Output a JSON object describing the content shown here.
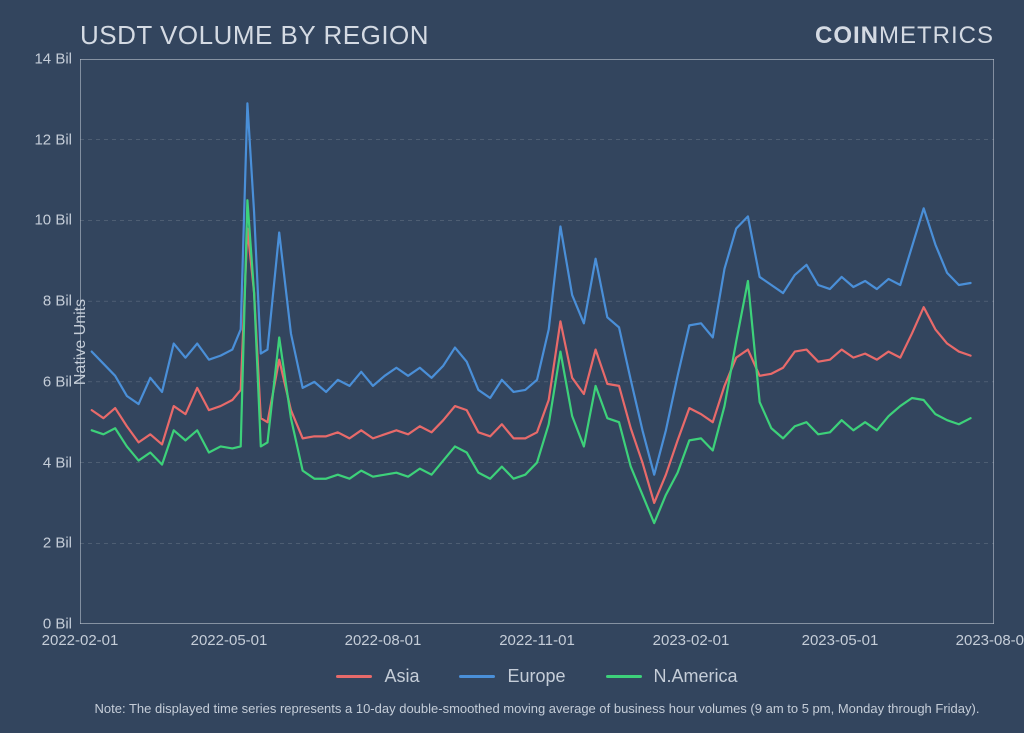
{
  "chart": {
    "type": "line",
    "title": "USDT VOLUME BY REGION",
    "background_color": "#33455e",
    "title_color": "#d4dae3",
    "title_fontsize": 26,
    "logo_text_bold": "COIN",
    "logo_text_light": "METRICS",
    "ylabel": "Native Units",
    "label_fontsize": 16,
    "axis_text_color": "#c5cdd8",
    "grid_color": "#8a94a3",
    "axis_line_color": "#b8c0cc",
    "ylim": [
      0,
      14
    ],
    "yticks": [
      0,
      2,
      4,
      6,
      8,
      10,
      12,
      14
    ],
    "ytick_labels": [
      "0 Bil",
      "2 Bil",
      "4 Bil",
      "6 Bil",
      "8 Bil",
      "10 Bil",
      "12 Bil",
      "14 Bil"
    ],
    "x_range_days": 546,
    "xtick_positions": [
      0,
      89,
      181,
      273,
      365,
      454,
      546
    ],
    "xtick_labels": [
      "2022-02-01",
      "2022-05-01",
      "2022-08-01",
      "2022-11-01",
      "2023-02-01",
      "2023-05-01",
      "2023-08-01"
    ],
    "line_width": 2.2,
    "series": [
      {
        "name": "Asia",
        "color": "#e86a6a",
        "data": [
          [
            7,
            5.3
          ],
          [
            14,
            5.1
          ],
          [
            21,
            5.35
          ],
          [
            28,
            4.9
          ],
          [
            35,
            4.5
          ],
          [
            42,
            4.7
          ],
          [
            49,
            4.45
          ],
          [
            56,
            5.4
          ],
          [
            63,
            5.2
          ],
          [
            70,
            5.85
          ],
          [
            77,
            5.3
          ],
          [
            84,
            5.4
          ],
          [
            91,
            5.55
          ],
          [
            96,
            5.8
          ],
          [
            100,
            9.8
          ],
          [
            104,
            8.2
          ],
          [
            108,
            5.1
          ],
          [
            112,
            5.0
          ],
          [
            119,
            6.55
          ],
          [
            126,
            5.3
          ],
          [
            133,
            4.6
          ],
          [
            140,
            4.65
          ],
          [
            147,
            4.65
          ],
          [
            154,
            4.75
          ],
          [
            161,
            4.6
          ],
          [
            168,
            4.8
          ],
          [
            175,
            4.6
          ],
          [
            182,
            4.7
          ],
          [
            189,
            4.8
          ],
          [
            196,
            4.7
          ],
          [
            203,
            4.9
          ],
          [
            210,
            4.75
          ],
          [
            217,
            5.05
          ],
          [
            224,
            5.4
          ],
          [
            231,
            5.3
          ],
          [
            238,
            4.75
          ],
          [
            245,
            4.65
          ],
          [
            252,
            4.95
          ],
          [
            259,
            4.6
          ],
          [
            266,
            4.6
          ],
          [
            273,
            4.75
          ],
          [
            280,
            5.55
          ],
          [
            287,
            7.5
          ],
          [
            294,
            6.1
          ],
          [
            301,
            5.7
          ],
          [
            308,
            6.8
          ],
          [
            315,
            5.95
          ],
          [
            322,
            5.9
          ],
          [
            329,
            4.85
          ],
          [
            336,
            4.0
          ],
          [
            343,
            3.0
          ],
          [
            350,
            3.7
          ],
          [
            357,
            4.55
          ],
          [
            364,
            5.35
          ],
          [
            371,
            5.2
          ],
          [
            378,
            5.0
          ],
          [
            385,
            5.9
          ],
          [
            392,
            6.6
          ],
          [
            399,
            6.8
          ],
          [
            406,
            6.15
          ],
          [
            413,
            6.2
          ],
          [
            420,
            6.35
          ],
          [
            427,
            6.75
          ],
          [
            434,
            6.8
          ],
          [
            441,
            6.5
          ],
          [
            448,
            6.55
          ],
          [
            455,
            6.8
          ],
          [
            462,
            6.6
          ],
          [
            469,
            6.7
          ],
          [
            476,
            6.55
          ],
          [
            483,
            6.75
          ],
          [
            490,
            6.6
          ],
          [
            497,
            7.2
          ],
          [
            504,
            7.85
          ],
          [
            511,
            7.3
          ],
          [
            518,
            6.95
          ],
          [
            525,
            6.75
          ],
          [
            532,
            6.65
          ]
        ]
      },
      {
        "name": "Europe",
        "color": "#4a8fd8",
        "data": [
          [
            7,
            6.75
          ],
          [
            14,
            6.45
          ],
          [
            21,
            6.15
          ],
          [
            28,
            5.65
          ],
          [
            35,
            5.45
          ],
          [
            42,
            6.1
          ],
          [
            49,
            5.75
          ],
          [
            56,
            6.95
          ],
          [
            63,
            6.6
          ],
          [
            70,
            6.95
          ],
          [
            77,
            6.55
          ],
          [
            84,
            6.65
          ],
          [
            91,
            6.8
          ],
          [
            96,
            7.3
          ],
          [
            100,
            12.9
          ],
          [
            104,
            10.2
          ],
          [
            108,
            6.7
          ],
          [
            112,
            6.8
          ],
          [
            119,
            9.7
          ],
          [
            126,
            7.2
          ],
          [
            133,
            5.85
          ],
          [
            140,
            6.0
          ],
          [
            147,
            5.75
          ],
          [
            154,
            6.05
          ],
          [
            161,
            5.9
          ],
          [
            168,
            6.25
          ],
          [
            175,
            5.9
          ],
          [
            182,
            6.15
          ],
          [
            189,
            6.35
          ],
          [
            196,
            6.15
          ],
          [
            203,
            6.35
          ],
          [
            210,
            6.1
          ],
          [
            217,
            6.4
          ],
          [
            224,
            6.85
          ],
          [
            231,
            6.5
          ],
          [
            238,
            5.8
          ],
          [
            245,
            5.6
          ],
          [
            252,
            6.05
          ],
          [
            259,
            5.75
          ],
          [
            266,
            5.8
          ],
          [
            273,
            6.05
          ],
          [
            280,
            7.3
          ],
          [
            287,
            9.85
          ],
          [
            294,
            8.15
          ],
          [
            301,
            7.45
          ],
          [
            308,
            9.05
          ],
          [
            315,
            7.6
          ],
          [
            322,
            7.35
          ],
          [
            329,
            6.05
          ],
          [
            336,
            4.8
          ],
          [
            343,
            3.7
          ],
          [
            350,
            4.8
          ],
          [
            357,
            6.15
          ],
          [
            364,
            7.4
          ],
          [
            371,
            7.45
          ],
          [
            378,
            7.1
          ],
          [
            385,
            8.8
          ],
          [
            392,
            9.8
          ],
          [
            399,
            10.1
          ],
          [
            406,
            8.6
          ],
          [
            413,
            8.4
          ],
          [
            420,
            8.2
          ],
          [
            427,
            8.65
          ],
          [
            434,
            8.9
          ],
          [
            441,
            8.4
          ],
          [
            448,
            8.3
          ],
          [
            455,
            8.6
          ],
          [
            462,
            8.35
          ],
          [
            469,
            8.5
          ],
          [
            476,
            8.3
          ],
          [
            483,
            8.55
          ],
          [
            490,
            8.4
          ],
          [
            497,
            9.35
          ],
          [
            504,
            10.3
          ],
          [
            511,
            9.4
          ],
          [
            518,
            8.7
          ],
          [
            525,
            8.4
          ],
          [
            532,
            8.45
          ]
        ]
      },
      {
        "name": "N.America",
        "color": "#3dd17a",
        "data": [
          [
            7,
            4.8
          ],
          [
            14,
            4.7
          ],
          [
            21,
            4.85
          ],
          [
            28,
            4.4
          ],
          [
            35,
            4.05
          ],
          [
            42,
            4.25
          ],
          [
            49,
            3.95
          ],
          [
            56,
            4.8
          ],
          [
            63,
            4.55
          ],
          [
            70,
            4.8
          ],
          [
            77,
            4.25
          ],
          [
            84,
            4.4
          ],
          [
            91,
            4.35
          ],
          [
            96,
            4.4
          ],
          [
            100,
            10.5
          ],
          [
            104,
            8.2
          ],
          [
            108,
            4.4
          ],
          [
            112,
            4.5
          ],
          [
            119,
            7.1
          ],
          [
            126,
            5.1
          ],
          [
            133,
            3.8
          ],
          [
            140,
            3.6
          ],
          [
            147,
            3.6
          ],
          [
            154,
            3.7
          ],
          [
            161,
            3.6
          ],
          [
            168,
            3.8
          ],
          [
            175,
            3.65
          ],
          [
            182,
            3.7
          ],
          [
            189,
            3.75
          ],
          [
            196,
            3.65
          ],
          [
            203,
            3.85
          ],
          [
            210,
            3.7
          ],
          [
            217,
            4.05
          ],
          [
            224,
            4.4
          ],
          [
            231,
            4.25
          ],
          [
            238,
            3.75
          ],
          [
            245,
            3.6
          ],
          [
            252,
            3.9
          ],
          [
            259,
            3.6
          ],
          [
            266,
            3.7
          ],
          [
            273,
            4.0
          ],
          [
            280,
            4.95
          ],
          [
            287,
            6.75
          ],
          [
            294,
            5.15
          ],
          [
            301,
            4.4
          ],
          [
            308,
            5.9
          ],
          [
            315,
            5.1
          ],
          [
            322,
            5.0
          ],
          [
            329,
            3.9
          ],
          [
            336,
            3.2
          ],
          [
            343,
            2.5
          ],
          [
            350,
            3.2
          ],
          [
            357,
            3.75
          ],
          [
            364,
            4.55
          ],
          [
            371,
            4.6
          ],
          [
            378,
            4.3
          ],
          [
            385,
            5.4
          ],
          [
            392,
            7.0
          ],
          [
            399,
            8.5
          ],
          [
            406,
            5.5
          ],
          [
            413,
            4.85
          ],
          [
            420,
            4.6
          ],
          [
            427,
            4.9
          ],
          [
            434,
            5.0
          ],
          [
            441,
            4.7
          ],
          [
            448,
            4.75
          ],
          [
            455,
            5.05
          ],
          [
            462,
            4.8
          ],
          [
            469,
            5.0
          ],
          [
            476,
            4.8
          ],
          [
            483,
            5.15
          ],
          [
            490,
            5.4
          ],
          [
            497,
            5.6
          ],
          [
            504,
            5.55
          ],
          [
            511,
            5.2
          ],
          [
            518,
            5.05
          ],
          [
            525,
            4.95
          ],
          [
            532,
            5.1
          ]
        ]
      }
    ],
    "footnote": "Note: The displayed time series represents a 10-day double-smoothed moving average of business hour volumes (9 am to 5 pm, Monday through Friday)."
  }
}
